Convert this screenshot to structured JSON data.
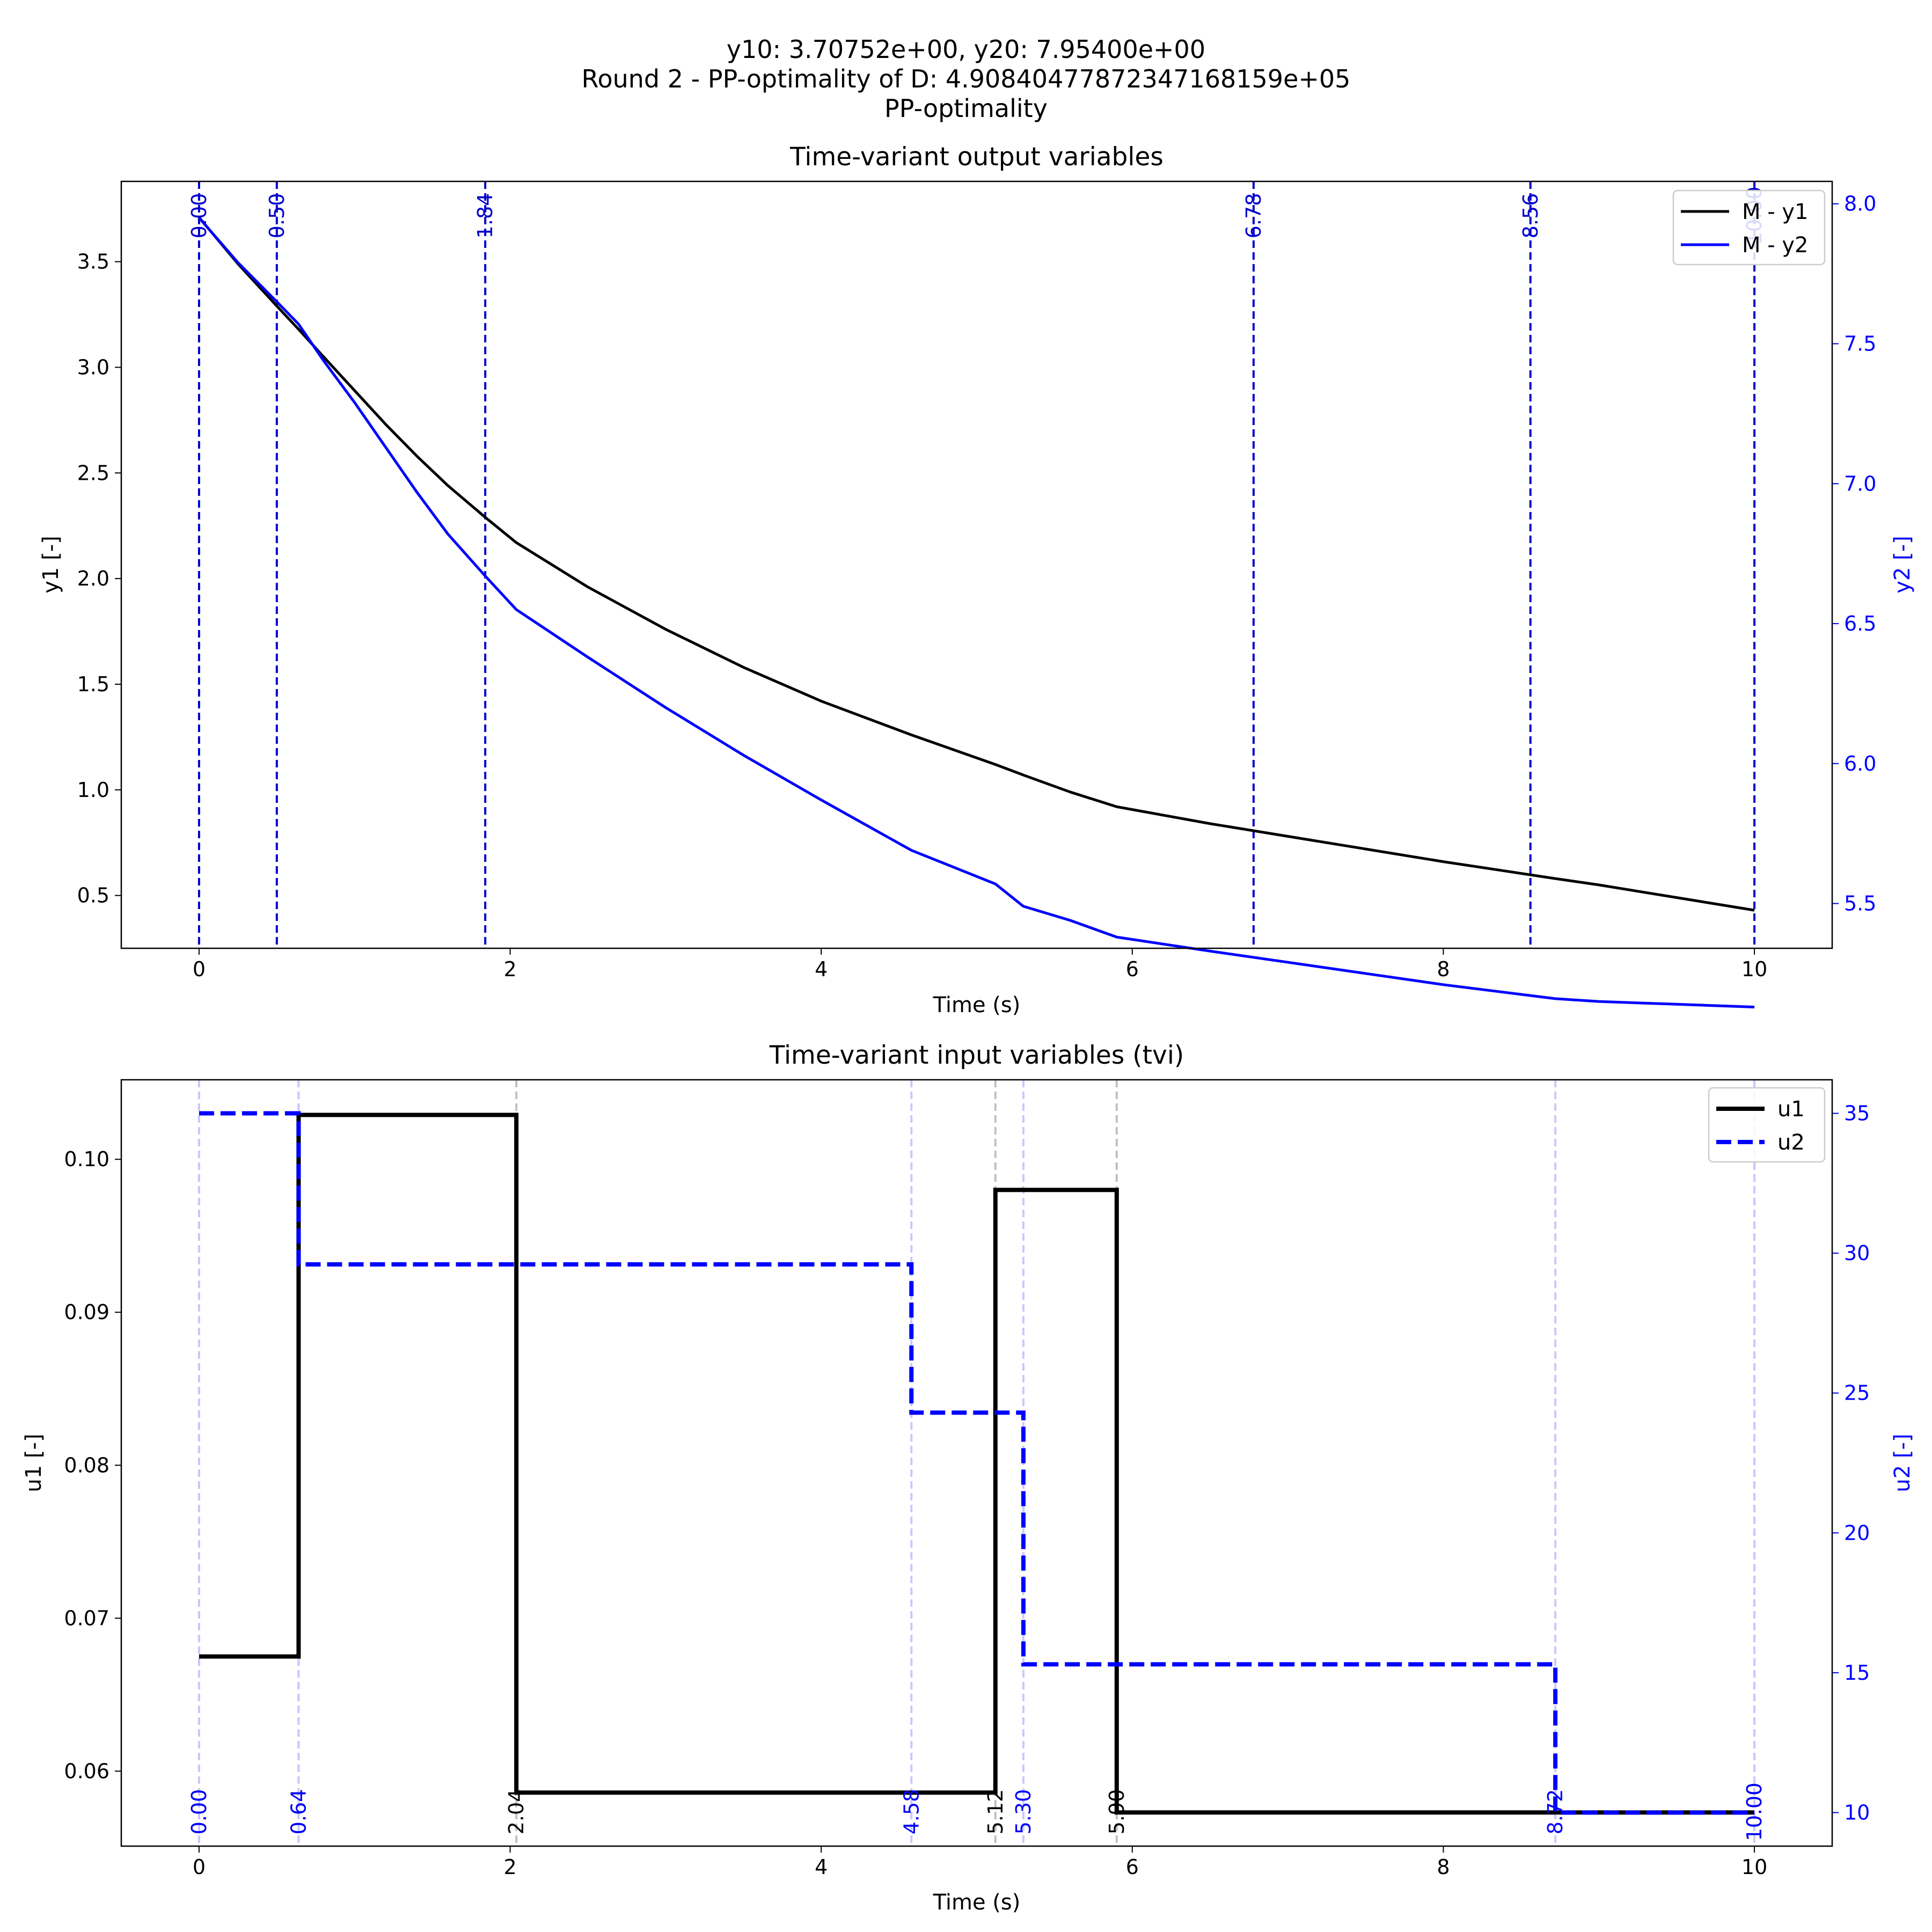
{
  "figure": {
    "suptitle_lines": [
      "y10: 3.70752e+00, y20: 7.95400e+00",
      "Round 2 - PP-optimality of D: 4.90840477872347168159e+05",
      "PP-optimality"
    ]
  },
  "colors": {
    "y1": "#000000",
    "y2": "#0000ff",
    "marker_top": "#0000cc",
    "u1": "#000000",
    "u2": "#0000ff",
    "u1_switch_line": "#c0c0c0",
    "u2_switch_line": "#c8c8ff",
    "axis_right_color": "#0000ff"
  },
  "chart_data": [
    {
      "type": "line",
      "title": "Time-variant output variables",
      "xlabel": "Time (s)",
      "ylabel": "y1 [-]",
      "ylabel_right": "y2 [-]",
      "xlim": [
        -0.5,
        10.5
      ],
      "ylim": [
        0.25,
        3.88
      ],
      "ylim_right": [
        5.34,
        8.08
      ],
      "x_ticks": [
        0,
        2,
        4,
        6,
        8,
        10
      ],
      "y_ticks": [
        0.5,
        1.0,
        1.5,
        2.0,
        2.5,
        3.0,
        3.5
      ],
      "y_ticks_right": [
        5.5,
        6.0,
        6.5,
        7.0,
        7.5,
        8.0
      ],
      "legend": "upper right",
      "series": [
        {
          "name": "M - y1",
          "axis": "left",
          "x": [
            0,
            0.25,
            0.5,
            0.64,
            0.8,
            1.0,
            1.2,
            1.4,
            1.6,
            1.84,
            2.04,
            2.5,
            3.0,
            3.5,
            4.0,
            4.58,
            5.12,
            5.3,
            5.6,
            5.9,
            6.5,
            7.0,
            7.5,
            8.0,
            8.72,
            9.0,
            9.5,
            10.0
          ],
          "values": [
            3.71,
            3.49,
            3.29,
            3.18,
            3.05,
            2.89,
            2.73,
            2.58,
            2.44,
            2.29,
            2.17,
            1.96,
            1.76,
            1.58,
            1.42,
            1.26,
            1.12,
            1.07,
            0.99,
            0.92,
            0.84,
            0.78,
            0.72,
            0.66,
            0.58,
            0.55,
            0.49,
            0.43
          ]
        },
        {
          "name": "M - y2",
          "axis": "right",
          "x": [
            0,
            0.25,
            0.5,
            0.64,
            0.8,
            1.0,
            1.2,
            1.4,
            1.6,
            1.84,
            2.04,
            2.5,
            3.0,
            3.5,
            4.0,
            4.58,
            5.12,
            5.3,
            5.6,
            5.9,
            6.5,
            7.0,
            7.5,
            8.0,
            8.72,
            9.0,
            9.5,
            10.0
          ],
          "values": [
            7.95,
            7.79,
            7.65,
            7.57,
            7.44,
            7.29,
            7.13,
            6.97,
            6.82,
            6.67,
            6.55,
            6.38,
            6.2,
            6.03,
            5.87,
            5.69,
            5.57,
            5.49,
            5.44,
            5.38,
            5.33,
            5.29,
            5.25,
            5.21,
            5.16,
            5.15,
            5.14,
            5.13
          ]
        }
      ],
      "markers": {
        "positions": [
          0.0,
          0.5,
          1.84,
          6.78,
          8.56,
          10.0
        ],
        "labels": [
          "0.00",
          "0.50",
          "1.84",
          "6.78",
          "8.56",
          "10.00"
        ]
      }
    },
    {
      "type": "line",
      "title": "Time-variant input variables (tvi)",
      "xlabel": "Time (s)",
      "ylabel": "u1 [-]",
      "ylabel_right": "u2 [-]",
      "xlim": [
        -0.5,
        10.5
      ],
      "ylim": [
        0.0551,
        0.1052
      ],
      "ylim_right": [
        8.8,
        36.2
      ],
      "x_ticks": [
        0,
        2,
        4,
        6,
        8,
        10
      ],
      "y_ticks": [
        0.06,
        0.07,
        0.08,
        0.09,
        0.1
      ],
      "y_ticks_right": [
        10,
        15,
        20,
        25,
        30,
        35
      ],
      "legend": "upper right",
      "series": [
        {
          "name": "u1",
          "axis": "left",
          "style": "solid",
          "switch_times": [
            0.0,
            0.64,
            2.04,
            5.12,
            5.9,
            10.0
          ],
          "levels": [
            0.0675,
            0.1029,
            0.0586,
            0.098,
            0.0573
          ]
        },
        {
          "name": "u2",
          "axis": "right",
          "style": "dashed",
          "switch_times": [
            0.0,
            0.64,
            4.58,
            5.3,
            8.72,
            10.0
          ],
          "levels": [
            35.0,
            29.6,
            24.3,
            15.3,
            10.0
          ]
        }
      ],
      "u1_switch_labels": [
        "0.00",
        "0.64",
        "2.04",
        "5.12",
        "5.90",
        "10.00"
      ],
      "u2_switch_labels": [
        "0.00",
        "0.64",
        "4.58",
        "5.30",
        "8.72",
        "10.00"
      ]
    }
  ]
}
